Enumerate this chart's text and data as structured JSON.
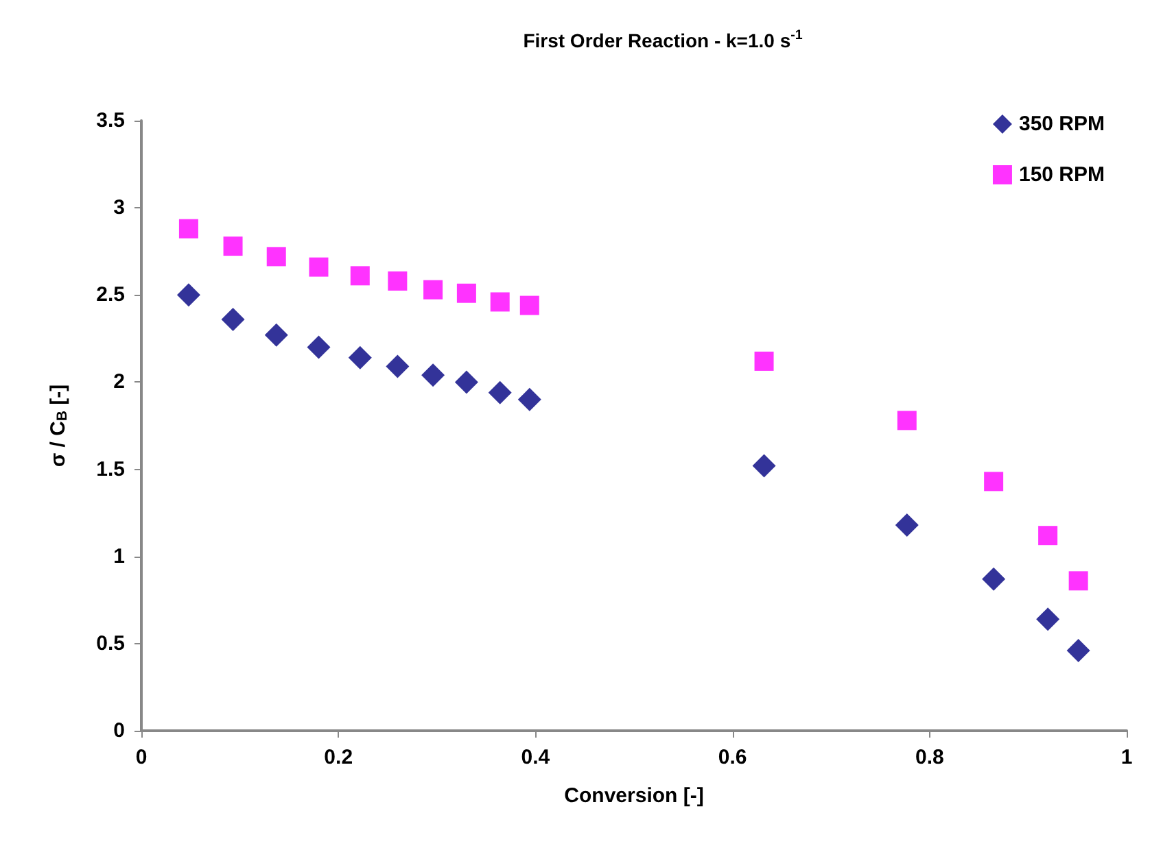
{
  "chart_data": {
    "type": "scatter",
    "title": "First Order Reaction - k=1.0 s$^{-1}$",
    "xlabel": "Conversion [-]",
    "ylabel": "σ / C$_{B}$ [-]",
    "xlim": [
      0,
      1
    ],
    "xticks": [
      0,
      0.2,
      0.4,
      0.6,
      0.8,
      1
    ],
    "ylim": [
      0,
      3.5
    ],
    "yticks": [
      0,
      0.5,
      1,
      1.5,
      2,
      2.5,
      3,
      3.5
    ],
    "x": [
      0.048,
      0.093,
      0.137,
      0.18,
      0.222,
      0.26,
      0.296,
      0.33,
      0.364,
      0.394,
      0.632,
      0.777,
      0.865,
      0.92,
      0.951
    ],
    "series": [
      {
        "name": "350 RPM",
        "color": "#000080",
        "marker": "diamond",
        "values": [
          2.5,
          2.36,
          2.27,
          2.2,
          2.14,
          2.09,
          2.04,
          2.0,
          1.94,
          1.9,
          1.52,
          1.18,
          0.87,
          0.64,
          0.46
        ]
      },
      {
        "name": "150 RPM",
        "color": "#ff00ff",
        "marker": "square",
        "values": [
          2.88,
          2.78,
          2.72,
          2.66,
          2.61,
          2.58,
          2.53,
          2.51,
          2.46,
          2.44,
          2.12,
          1.78,
          1.43,
          1.12,
          0.86
        ]
      }
    ],
    "grid": false,
    "legend": "top right"
  }
}
